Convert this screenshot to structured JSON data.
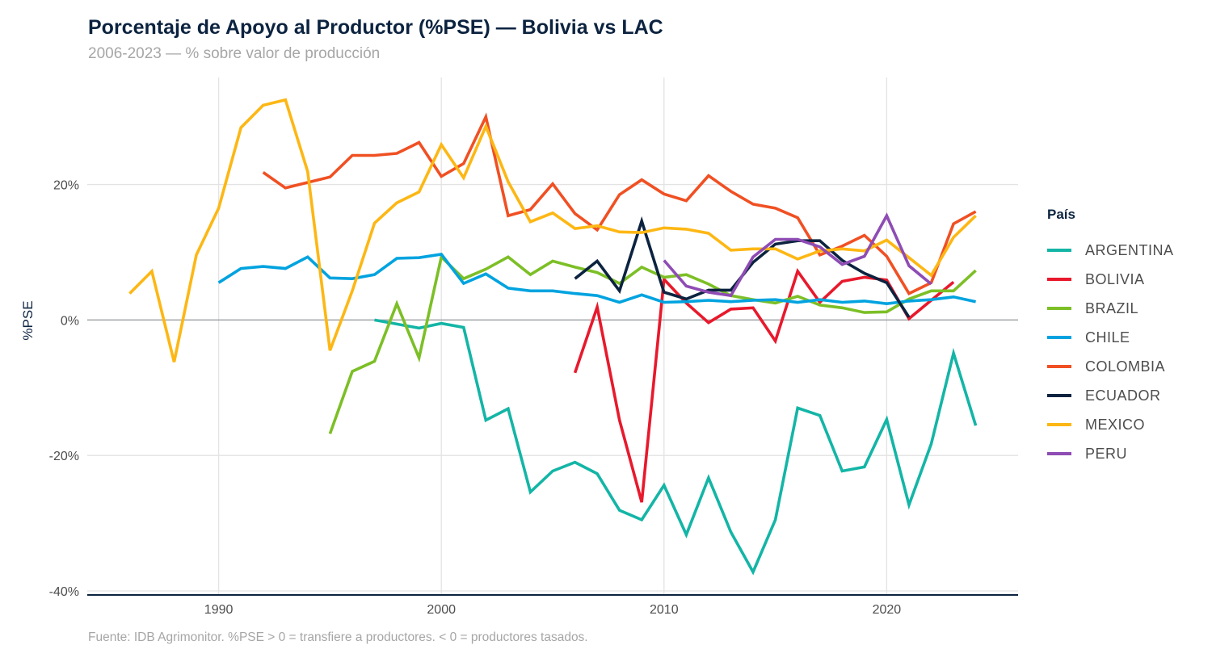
{
  "chart_data": {
    "type": "line",
    "title": "Porcentaje de Apoyo al Productor (%PSE) — Bolivia vs LAC",
    "subtitle": "2006-2023 — % sobre valor de producción",
    "caption": "Fuente: IDB Agrimonitor. %PSE > 0 = transfiere a productores. < 0 = productores tasados.",
    "xlabel": "",
    "ylabel": "%PSE",
    "xlim": [
      1984.1,
      2025.9
    ],
    "ylim": [
      -40.6,
      35.8
    ],
    "x_ticks": [
      1990,
      2000,
      2010,
      2020
    ],
    "x_tick_labels": [
      "1990",
      "2000",
      "2010",
      "2020"
    ],
    "y_ticks": [
      -40,
      -20,
      0,
      20
    ],
    "y_tick_labels": [
      "-40%",
      "-20%",
      "0%",
      "20%"
    ],
    "grid": true,
    "reference_line": 0,
    "legend": {
      "title": "País",
      "position": "right"
    },
    "series": [
      {
        "name": "ARGENTINA",
        "color": "#13B5A6",
        "x": [
          1997,
          1998,
          1999,
          2000,
          2001,
          2002,
          2003,
          2004,
          2005,
          2006,
          2007,
          2008,
          2009,
          2010,
          2011,
          2012,
          2013,
          2014,
          2015,
          2016,
          2017,
          2018,
          2019,
          2020,
          2021,
          2022,
          2023,
          2024
        ],
        "values": [
          0.0,
          -0.6,
          -1.2,
          -0.5,
          -1.1,
          -14.8,
          -13.1,
          -25.4,
          -22.3,
          -21.0,
          -22.7,
          -28.1,
          -29.5,
          -24.4,
          -31.7,
          -23.3,
          -31.3,
          -37.2,
          -29.5,
          -13.0,
          -14.1,
          -22.3,
          -21.7,
          -14.7,
          -27.3,
          -18.3,
          -4.9,
          -15.6
        ]
      },
      {
        "name": "BOLIVIA",
        "color": "#E8192C",
        "x": [
          2006,
          2007,
          2008,
          2009,
          2010,
          2011,
          2012,
          2013,
          2014,
          2015,
          2016,
          2017,
          2018,
          2019,
          2020,
          2021,
          2022,
          2023
        ],
        "values": [
          -7.8,
          1.9,
          -14.8,
          -26.9,
          6.0,
          2.5,
          -0.4,
          1.6,
          1.8,
          -3.1,
          7.2,
          2.6,
          5.7,
          6.3,
          5.9,
          0.2,
          2.9,
          5.6
        ]
      },
      {
        "name": "BRAZIL",
        "color": "#7CBF26",
        "x": [
          1995,
          1996,
          1997,
          1998,
          1999,
          2000,
          2001,
          2002,
          2003,
          2004,
          2005,
          2006,
          2007,
          2008,
          2009,
          2010,
          2011,
          2012,
          2013,
          2014,
          2015,
          2016,
          2017,
          2018,
          2019,
          2020,
          2021,
          2022,
          2023,
          2024
        ],
        "values": [
          -16.8,
          -7.6,
          -6.1,
          2.4,
          -5.6,
          9.3,
          6.1,
          7.5,
          9.3,
          6.7,
          8.7,
          7.8,
          7.0,
          5.4,
          7.8,
          6.3,
          6.7,
          5.3,
          3.6,
          3.0,
          2.5,
          3.5,
          2.2,
          1.8,
          1.1,
          1.2,
          3.1,
          4.3,
          4.3,
          7.3
        ]
      },
      {
        "name": "CHILE",
        "color": "#00A3DF",
        "x": [
          1990,
          1991,
          1992,
          1993,
          1994,
          1995,
          1996,
          1997,
          1998,
          1999,
          2000,
          2001,
          2002,
          2003,
          2004,
          2005,
          2006,
          2007,
          2008,
          2009,
          2010,
          2011,
          2012,
          2013,
          2014,
          2015,
          2016,
          2017,
          2018,
          2019,
          2020,
          2021,
          2022,
          2023,
          2024
        ],
        "values": [
          5.5,
          7.6,
          7.9,
          7.6,
          9.3,
          6.2,
          6.1,
          6.7,
          9.1,
          9.2,
          9.7,
          5.4,
          6.8,
          4.7,
          4.3,
          4.3,
          3.9,
          3.6,
          2.6,
          3.7,
          2.6,
          2.7,
          2.9,
          2.7,
          2.9,
          3.0,
          2.6,
          3.0,
          2.6,
          2.8,
          2.4,
          2.8,
          3.0,
          3.4,
          2.7
        ]
      },
      {
        "name": "COLOMBIA",
        "color": "#F05023",
        "x": [
          1992,
          1993,
          1994,
          1995,
          1996,
          1997,
          1998,
          1999,
          2000,
          2001,
          2002,
          2003,
          2004,
          2005,
          2006,
          2007,
          2008,
          2009,
          2010,
          2011,
          2012,
          2013,
          2014,
          2015,
          2016,
          2017,
          2018,
          2019,
          2020,
          2021,
          2022,
          2023,
          2024
        ],
        "values": [
          21.8,
          19.5,
          20.3,
          21.1,
          24.3,
          24.3,
          24.6,
          26.2,
          21.2,
          23.1,
          30.0,
          15.4,
          16.3,
          20.1,
          15.7,
          13.3,
          18.5,
          20.7,
          18.6,
          17.6,
          21.3,
          19.0,
          17.1,
          16.5,
          15.1,
          9.6,
          10.9,
          12.5,
          9.4,
          3.9,
          5.5,
          14.2,
          16.0
        ]
      },
      {
        "name": "ECUADOR",
        "color": "#0C2340",
        "x": [
          2006,
          2007,
          2008,
          2009,
          2010,
          2011,
          2012,
          2013,
          2014,
          2015,
          2016,
          2017,
          2018,
          2019,
          2020,
          2021
        ],
        "values": [
          6.1,
          8.7,
          4.3,
          14.6,
          4.1,
          3.1,
          4.4,
          4.4,
          8.5,
          11.2,
          11.7,
          11.7,
          8.8,
          6.9,
          5.5,
          0.4
        ]
      },
      {
        "name": "MEXICO",
        "color": "#FDB714",
        "x": [
          1986,
          1987,
          1988,
          1989,
          1990,
          1991,
          1992,
          1993,
          1994,
          1995,
          1996,
          1997,
          1998,
          1999,
          2000,
          2001,
          2002,
          2003,
          2004,
          2005,
          2006,
          2007,
          2008,
          2009,
          2010,
          2011,
          2012,
          2013,
          2014,
          2015,
          2016,
          2017,
          2018,
          2019,
          2020,
          2021,
          2022,
          2023,
          2024
        ],
        "values": [
          3.9,
          7.2,
          -6.2,
          9.6,
          16.5,
          28.4,
          31.7,
          32.5,
          21.9,
          -4.5,
          4.3,
          14.3,
          17.3,
          18.9,
          25.9,
          21.0,
          28.6,
          20.4,
          14.5,
          15.8,
          13.5,
          13.9,
          13.0,
          12.9,
          13.6,
          13.4,
          12.8,
          10.3,
          10.5,
          10.5,
          9.0,
          10.2,
          10.5,
          10.2,
          11.8,
          9.2,
          6.6,
          12.2,
          15.4
        ]
      },
      {
        "name": "PERU",
        "color": "#8E4CB4",
        "x": [
          2010,
          2011,
          2012,
          2013,
          2014,
          2015,
          2016,
          2017,
          2018,
          2019,
          2020,
          2021,
          2022
        ],
        "values": [
          8.8,
          5.0,
          4.1,
          3.6,
          9.3,
          11.9,
          11.9,
          10.8,
          8.2,
          9.4,
          15.4,
          8.0,
          5.3
        ]
      }
    ]
  }
}
